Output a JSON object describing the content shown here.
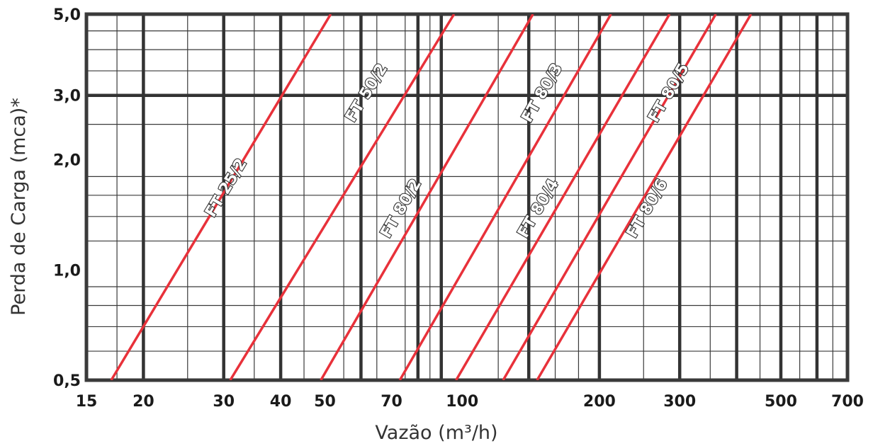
{
  "chart_data": {
    "type": "line",
    "title": "",
    "xlabel": "Vazão (m³/h)",
    "ylabel": "Perda de Carga (mca)*",
    "x_scale": "log",
    "y_scale": "log",
    "xlim": [
      15,
      700
    ],
    "ylim": [
      0.5,
      5.0
    ],
    "grid": true,
    "legend": "labels on lines",
    "x_tick_labels": [
      {
        "value": 15,
        "label": "15"
      },
      {
        "value": 20,
        "label": "20"
      },
      {
        "value": 30,
        "label": "30"
      },
      {
        "value": 40,
        "label": "40"
      },
      {
        "value": 50,
        "label": "50"
      },
      {
        "value": 70,
        "label": "70"
      },
      {
        "value": 100,
        "label": "100"
      },
      {
        "value": 200,
        "label": "200"
      },
      {
        "value": 300,
        "label": "300"
      },
      {
        "value": 500,
        "label": "500"
      },
      {
        "value": 700,
        "label": "700"
      }
    ],
    "y_tick_labels": [
      {
        "value": 0.5,
        "label": "0,5"
      },
      {
        "value": 1.0,
        "label": "1,0"
      },
      {
        "value": 2.0,
        "label": "2,0"
      },
      {
        "value": 3.0,
        "label": "3,0"
      },
      {
        "value": 5.0,
        "label": "5,0"
      }
    ],
    "x_major_grid": [
      20,
      30,
      40,
      60,
      80,
      90,
      140,
      200,
      300,
      400,
      500,
      600
    ],
    "x_minor_grid": [
      17.5,
      25,
      35,
      45,
      55,
      65,
      75,
      85,
      120,
      160,
      180,
      250,
      350,
      450,
      550,
      650
    ],
    "y_major_grid": [
      3.0
    ],
    "y_minor_grid": [
      0.6,
      0.7,
      0.8,
      0.9,
      1.2,
      1.4,
      1.6,
      1.8,
      2.5,
      3.5,
      4.0,
      4.5
    ],
    "line_color": "#e8313a",
    "series": [
      {
        "name": "FT 25/2",
        "label_at": {
          "x": 31,
          "y": 1.65
        },
        "points": [
          {
            "x": 17.0,
            "y": 0.5
          },
          {
            "x": 51.5,
            "y": 5.0
          }
        ]
      },
      {
        "name": "FT 50/2",
        "label_at": {
          "x": 63,
          "y": 3.0
        },
        "points": [
          {
            "x": 31.0,
            "y": 0.5
          },
          {
            "x": 96.0,
            "y": 5.0
          }
        ]
      },
      {
        "name": "FT 80/2",
        "label_at": {
          "x": 75,
          "y": 1.45
        },
        "points": [
          {
            "x": 49.0,
            "y": 0.5
          },
          {
            "x": 143.0,
            "y": 5.0
          }
        ]
      },
      {
        "name": "FT 80/3",
        "label_at": {
          "x": 153,
          "y": 3.0
        },
        "points": [
          {
            "x": 73.0,
            "y": 0.5
          },
          {
            "x": 212.0,
            "y": 5.0
          }
        ]
      },
      {
        "name": "FT 80/4",
        "label_at": {
          "x": 150,
          "y": 1.45
        },
        "points": [
          {
            "x": 97.0,
            "y": 0.5
          },
          {
            "x": 285.0,
            "y": 5.0
          }
        ]
      },
      {
        "name": "FT 80/5",
        "label_at": {
          "x": 290,
          "y": 3.0
        },
        "points": [
          {
            "x": 123.0,
            "y": 0.5
          },
          {
            "x": 360.0,
            "y": 5.0
          }
        ]
      },
      {
        "name": "FT 80/6",
        "label_at": {
          "x": 260,
          "y": 1.45
        },
        "points": [
          {
            "x": 146.0,
            "y": 0.5
          },
          {
            "x": 430.0,
            "y": 5.0
          }
        ]
      }
    ]
  }
}
